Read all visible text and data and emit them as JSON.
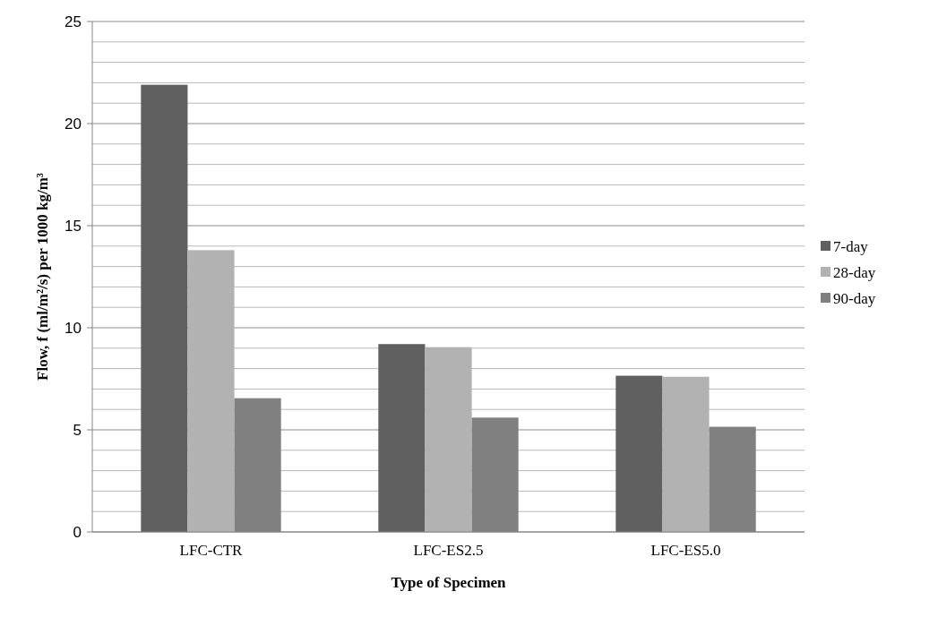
{
  "chart_data": {
    "type": "bar",
    "xlabel": "Type of Specimen",
    "ylabel": "Flow, f (ml/m²/s) per 1000 kg/m³",
    "categories": [
      "LFC-CTR",
      "LFC-ES2.5",
      "LFC-ES5.0"
    ],
    "series": [
      {
        "name": "7-day",
        "color": "#606060",
        "values": [
          21.9,
          9.2,
          7.65
        ]
      },
      {
        "name": "28-day",
        "color": "#b2b2b2",
        "values": [
          13.8,
          9.05,
          7.6
        ]
      },
      {
        "name": "90-day",
        "color": "#808080",
        "values": [
          6.55,
          5.6,
          5.15
        ]
      }
    ],
    "ylim": [
      0,
      25
    ],
    "yticks": [
      0,
      {
        "value": 1,
        "label": null
      },
      {
        "value": 2,
        "label": null
      },
      {
        "value": 3,
        "label": null
      },
      {
        "value": 4,
        "label": null
      },
      5,
      {
        "value": 6,
        "label": null
      },
      {
        "value": 7,
        "label": null
      },
      {
        "value": 8,
        "label": null
      },
      {
        "value": 9,
        "label": null
      },
      10,
      {
        "value": 11,
        "label": null
      },
      {
        "value": 12,
        "label": null
      },
      {
        "value": 13,
        "label": null
      },
      {
        "value": 14,
        "label": null
      },
      15,
      {
        "value": 16,
        "label": null
      },
      {
        "value": 17,
        "label": null
      },
      {
        "value": 18,
        "label": null
      },
      {
        "value": 19,
        "label": null
      },
      20,
      {
        "value": 21,
        "label": null
      },
      {
        "value": 22,
        "label": null
      },
      {
        "value": 23,
        "label": null
      },
      {
        "value": 24,
        "label": null
      },
      25
    ],
    "grid": "y",
    "legend": "right"
  }
}
